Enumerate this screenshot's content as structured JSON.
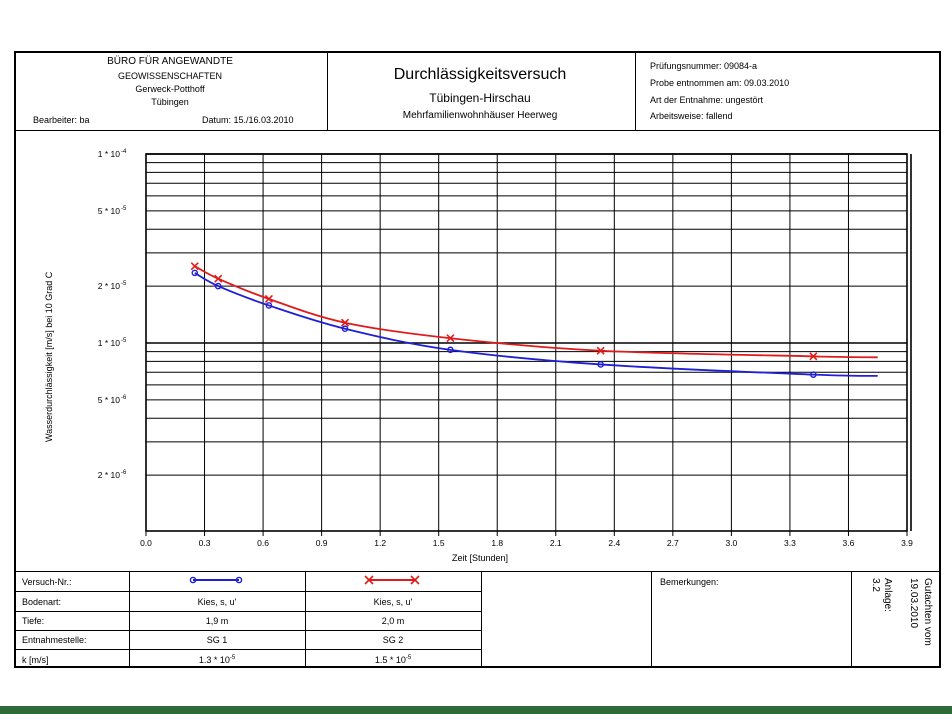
{
  "header": {
    "office_line1": "BÜRO FÜR ANGEWANDTE",
    "office_line2": "GEOWISSENSCHAFTEN",
    "office_line3": "Gerweck-Potthoff",
    "office_line4": "Tübingen",
    "bearbeiter": "Bearbeiter:  ba",
    "datum": "Datum:  15./16.03.2010",
    "title": "Durchlässigkeitsversuch",
    "subtitle": "Tübingen-Hirschau",
    "subtitle2": "Mehrfamilienwohnhäuser Heerweg",
    "pruefnr": "Prüfungsnummer:  09084-a",
    "probe": "Probe entnommen am:  09.03.2010",
    "art": "Art der Entnahme:  ungestört",
    "arbeitsweise": "Arbeitsweise:  fallend"
  },
  "chart_data": {
    "type": "line",
    "xlabel": "Zeit [Stunden]",
    "ylabel": "Wasserdurchlässigkeit [m/s] bei 10 Grad C",
    "xlim": [
      0.0,
      3.9
    ],
    "x_ticks": [
      "0.0",
      "0.3",
      "0.6",
      "0.9",
      "1.2",
      "1.5",
      "1.8",
      "2.1",
      "2.4",
      "2.7",
      "3.0",
      "3.3",
      "3.6",
      "3.9"
    ],
    "y_scale": "log",
    "y_ticks": [
      {
        "base": "1 * 10",
        "exp": "-4",
        "value": 0.0001
      },
      {
        "base": "5 * 10",
        "exp": "-5",
        "value": 5e-05
      },
      {
        "base": "2 * 10",
        "exp": "-5",
        "value": 2e-05
      },
      {
        "base": "1 * 10",
        "exp": "-5",
        "value": 1e-05
      },
      {
        "base": "5 * 10",
        "exp": "-6",
        "value": 5e-06
      },
      {
        "base": "2 * 10",
        "exp": "-6",
        "value": 2e-06
      }
    ],
    "grid": true,
    "series": [
      {
        "color": "#1f1fd6",
        "marker": "circle",
        "points": [
          [
            0.25,
            2.35e-05
          ],
          [
            0.37,
            2e-05
          ],
          [
            0.63,
            1.58e-05
          ],
          [
            1.02,
            1.19e-05
          ],
          [
            1.56,
            9.2e-06
          ],
          [
            2.33,
            7.7e-06
          ],
          [
            3.42,
            6.8e-06
          ]
        ],
        "curve_end": [
          3.75,
          6.7e-06
        ]
      },
      {
        "color": "#e01b1b",
        "marker": "x",
        "points": [
          [
            0.25,
            2.55e-05
          ],
          [
            0.37,
            2.19e-05
          ],
          [
            0.63,
            1.71e-05
          ],
          [
            1.02,
            1.28e-05
          ],
          [
            1.56,
            1.06e-05
          ],
          [
            2.33,
            9.1e-06
          ],
          [
            3.42,
            8.5e-06
          ]
        ],
        "curve_end": [
          3.75,
          8.4e-06
        ]
      }
    ]
  },
  "table": {
    "rows": [
      {
        "label": "Versuch-Nr.:",
        "v1": "",
        "v2": ""
      },
      {
        "label": "Bodenart:",
        "v1": "Kies, s, u'",
        "v2": "Kies, s, u'"
      },
      {
        "label": "Tiefe:",
        "v1": "1,9 m",
        "v2": "2,0 m"
      },
      {
        "label": "Entnahmestelle:",
        "v1": "SG 1",
        "v2": "SG 2"
      },
      {
        "label": "k [m/s]",
        "v1": "1.3 * 10",
        "v2": "1.5 * 10",
        "exp": "-5"
      }
    ],
    "bemerkungen": "Bemerkungen:",
    "anlage": "Anlage:",
    "anlage_nr": "3.2",
    "gutachten": "Gutachten vom",
    "gutachten_date": "19.03.2010"
  }
}
